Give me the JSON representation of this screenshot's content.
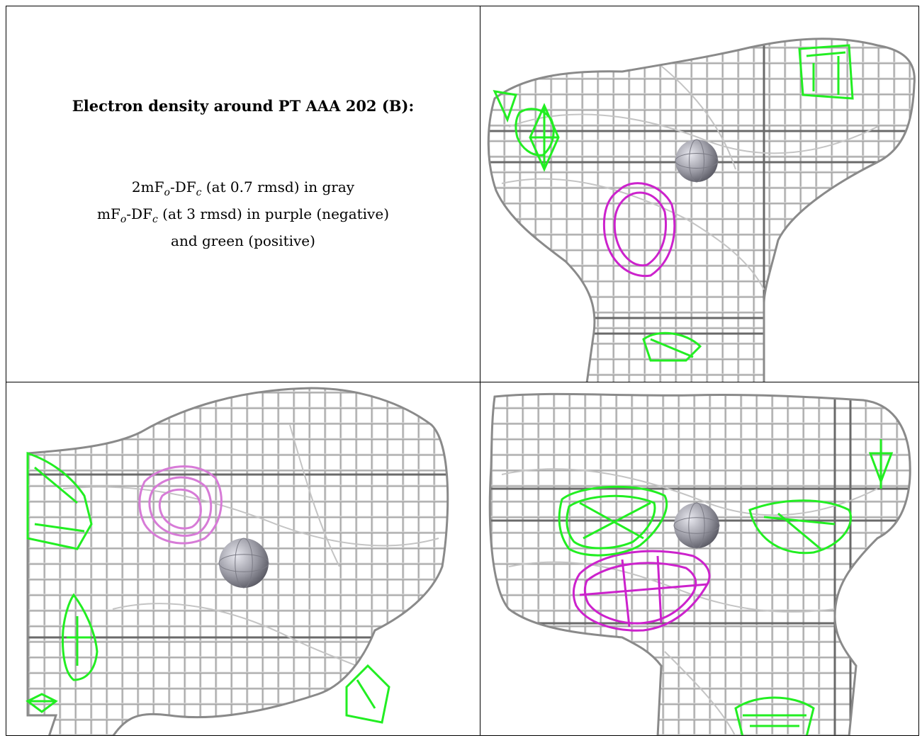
{
  "caption": {
    "title": "Electron density around PT AAA 202 (B):",
    "line1_prefix": "2mF",
    "line1_sub1": "o",
    "line1_mid": "-DF",
    "line1_sub2": "c",
    "line1_suffix": " (at 0.7 rmsd) in gray",
    "line2_prefix": "mF",
    "line2_sub1": "o",
    "line2_mid": "-DF",
    "line2_sub2": "c",
    "line2_suffix": " (at 3 rmsd) in purple (negative)",
    "line3": "and green (positive)"
  },
  "colors": {
    "mesh_gray": "#a8a8a8",
    "mesh_dark": "#6a6a6a",
    "positive_green": "#22ee22",
    "negative_purple": "#cc22cc",
    "negative_purple_light": "#d77bd7",
    "atom_sphere": "#9a9aa4"
  },
  "panels": [
    {
      "name": "view-top-right",
      "atom": "PT",
      "features": [
        "positive-density",
        "negative-density"
      ]
    },
    {
      "name": "view-bottom-left",
      "atom": "PT",
      "features": [
        "positive-density",
        "negative-density"
      ]
    },
    {
      "name": "view-bottom-right",
      "atom": "PT",
      "features": [
        "positive-density",
        "negative-density"
      ]
    }
  ]
}
